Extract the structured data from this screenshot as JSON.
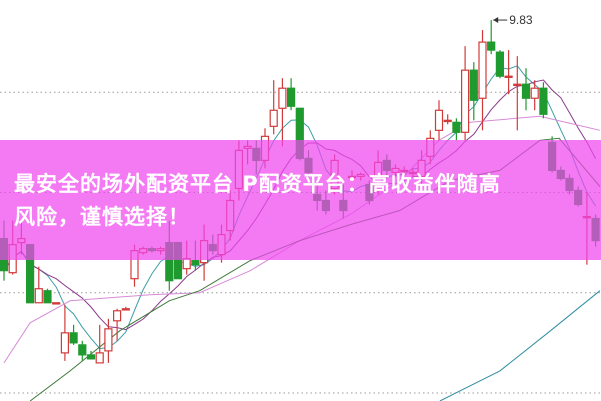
{
  "banner": {
    "line1": "最安全的场外配资平台 P配资平台：高收益伴随高",
    "line2": "风险，谨慎选择！"
  },
  "chart_data": {
    "type": "candlestick",
    "title": "",
    "ylim": [
      7.93,
      9.93
    ],
    "grid": true,
    "grid_levels": [
      9.47,
      8.97,
      8.47,
      7.97
    ],
    "colors": {
      "up": "#d23a3a",
      "down": "#1f9a2e",
      "ma5": "#3b9ea6",
      "ma10": "#8a3a8a",
      "ma_pink": "#d78bd8",
      "ma_green": "#3f7a3a",
      "ma_long": "#2e8ea0",
      "banner": "#f046f0"
    },
    "high_annotation": {
      "label": "9.83",
      "index": 56,
      "value": 9.83
    },
    "candles": [
      [
        8.74,
        8.83,
        8.53,
        8.58
      ],
      [
        8.57,
        8.83,
        8.56,
        8.71
      ],
      [
        8.72,
        8.83,
        8.66,
        8.74
      ],
      [
        8.71,
        8.71,
        8.42,
        8.42
      ],
      [
        8.42,
        8.6,
        8.42,
        8.49
      ],
      [
        8.48,
        8.49,
        8.42,
        8.42
      ],
      [
        8.42,
        8.42,
        8.42,
        8.42
      ],
      [
        8.17,
        8.41,
        8.13,
        8.27
      ],
      [
        8.27,
        8.31,
        8.21,
        8.22
      ],
      [
        8.21,
        8.23,
        8.13,
        8.16
      ],
      [
        8.16,
        8.18,
        8.14,
        8.14
      ],
      [
        8.12,
        8.31,
        8.12,
        8.17
      ],
      [
        8.18,
        8.34,
        8.12,
        8.29
      ],
      [
        8.33,
        8.39,
        8.23,
        8.38
      ],
      [
        8.39,
        8.4,
        8.39,
        8.39
      ],
      [
        8.54,
        8.71,
        8.5,
        8.68
      ],
      [
        8.67,
        8.7,
        8.66,
        8.69
      ],
      [
        8.69,
        8.7,
        8.67,
        8.68
      ],
      [
        8.68,
        8.7,
        8.66,
        8.69
      ],
      [
        8.72,
        8.83,
        8.48,
        8.53
      ],
      [
        8.72,
        8.72,
        8.54,
        8.54
      ],
      [
        8.59,
        8.73,
        8.56,
        8.64
      ],
      [
        8.63,
        8.73,
        8.58,
        8.61
      ],
      [
        8.62,
        8.81,
        8.53,
        8.73
      ],
      [
        8.71,
        8.76,
        8.66,
        8.68
      ],
      [
        8.66,
        8.81,
        8.62,
        8.76
      ],
      [
        8.78,
        8.98,
        8.73,
        8.93
      ],
      [
        8.99,
        9.23,
        8.93,
        9.18
      ],
      [
        9.19,
        9.23,
        9.11,
        9.2
      ],
      [
        9.19,
        9.23,
        9.06,
        9.13
      ],
      [
        9.13,
        9.29,
        9.09,
        9.25
      ],
      [
        9.3,
        9.53,
        9.26,
        9.38
      ],
      [
        9.39,
        9.54,
        9.2,
        9.49
      ],
      [
        9.49,
        9.54,
        9.38,
        9.4
      ],
      [
        9.39,
        9.39,
        9.13,
        9.14
      ],
      [
        9.14,
        9.18,
        9.03,
        9.07
      ],
      [
        8.96,
        9.03,
        8.88,
        8.93
      ],
      [
        8.93,
        8.98,
        8.86,
        8.88
      ],
      [
        8.99,
        9.16,
        8.96,
        9.13
      ],
      [
        8.93,
        9.01,
        8.84,
        8.88
      ],
      [
        9.05,
        9.08,
        9.03,
        9.05
      ],
      [
        9.05,
        9.07,
        9.03,
        9.06
      ],
      [
        9.01,
        9.03,
        8.91,
        8.93
      ],
      [
        8.98,
        9.18,
        8.96,
        9.12
      ],
      [
        9.13,
        9.16,
        9.04,
        9.08
      ],
      [
        9.07,
        9.11,
        9.05,
        9.09
      ],
      [
        9.08,
        9.1,
        9.06,
        9.08
      ],
      [
        9.07,
        9.09,
        9.05,
        9.07
      ],
      [
        9.05,
        9.18,
        9.01,
        9.13
      ],
      [
        9.15,
        9.28,
        9.11,
        9.24
      ],
      [
        9.28,
        9.43,
        9.23,
        9.38
      ],
      [
        9.33,
        9.36,
        9.31,
        9.33
      ],
      [
        9.32,
        9.34,
        9.23,
        9.27
      ],
      [
        9.27,
        9.7,
        9.23,
        9.58
      ],
      [
        9.58,
        9.62,
        9.33,
        9.43
      ],
      [
        9.44,
        9.78,
        9.28,
        9.72
      ],
      [
        9.72,
        9.83,
        9.66,
        9.68
      ],
      [
        9.67,
        9.68,
        9.54,
        9.55
      ],
      [
        9.55,
        9.68,
        9.46,
        9.55
      ],
      [
        9.51,
        9.65,
        9.28,
        9.51
      ],
      [
        9.51,
        9.59,
        9.38,
        9.44
      ],
      [
        9.44,
        9.53,
        9.38,
        9.49
      ],
      [
        9.49,
        9.52,
        9.34,
        9.36
      ],
      [
        9.22,
        9.25,
        9.07,
        9.08
      ],
      [
        9.08,
        9.1,
        9.03,
        9.04
      ],
      [
        9.04,
        9.06,
        8.96,
        8.98
      ],
      [
        8.98,
        9.0,
        8.9,
        8.91
      ],
      [
        8.85,
        8.97,
        8.61,
        8.85
      ],
      [
        8.84,
        8.86,
        8.7,
        8.73
      ]
    ],
    "moving_averages": [
      {
        "key": "ma5",
        "period": 5
      },
      {
        "key": "ma10",
        "period": 10
      },
      {
        "key": "ma_pink",
        "points": [
          [
            0,
            8.12
          ],
          [
            3,
            8.32
          ],
          [
            7.6,
            8.43
          ],
          [
            16.8,
            8.46
          ],
          [
            22.5,
            8.47
          ],
          [
            28.3,
            8.58
          ],
          [
            34,
            8.73
          ],
          [
            39.8,
            8.86
          ],
          [
            45.5,
            9.03
          ],
          [
            50,
            9.23
          ],
          [
            53.6,
            9.32
          ],
          [
            61.6,
            9.35
          ],
          [
            68.5,
            9.28
          ]
        ]
      },
      {
        "key": "ma_green",
        "points": [
          [
            3,
            7.93
          ],
          [
            7.6,
            8.08
          ],
          [
            13.3,
            8.28
          ],
          [
            19,
            8.43
          ],
          [
            22.5,
            8.48
          ],
          [
            28.3,
            8.63
          ],
          [
            34,
            8.73
          ],
          [
            39.8,
            8.81
          ],
          [
            45.5,
            8.88
          ],
          [
            51.3,
            9.03
          ],
          [
            57,
            9.08
          ],
          [
            61.6,
            9.23
          ],
          [
            63.8,
            9.24
          ],
          [
            68.5,
            9.0
          ]
        ]
      },
      {
        "key": "ma_long",
        "points": [
          [
            50.1,
            7.93
          ],
          [
            57,
            8.08
          ],
          [
            62.8,
            8.28
          ],
          [
            68.5,
            8.48
          ]
        ]
      }
    ]
  }
}
